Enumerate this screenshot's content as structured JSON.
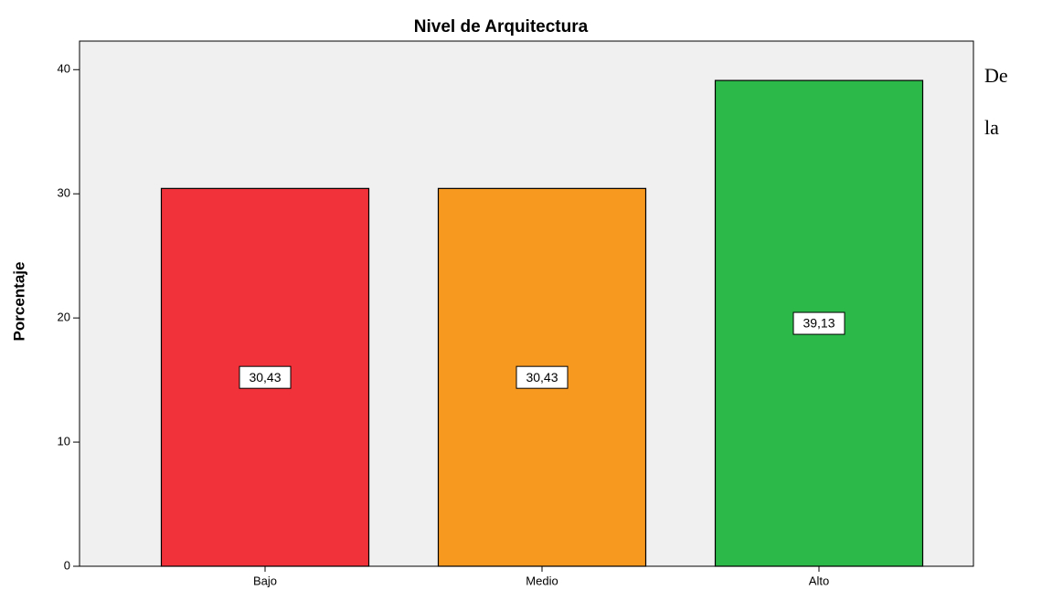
{
  "chart_data": {
    "type": "bar",
    "title": "Nivel de Arquitectura",
    "y_label": "Porcentaje",
    "categories": [
      "Bajo",
      "Medio",
      "Alto"
    ],
    "values": [
      30.43,
      30.43,
      39.13
    ],
    "value_labels": [
      "30,43",
      "30,43",
      "39,13"
    ],
    "colors": [
      "#f2323a",
      "#f7981f",
      "#2db84a"
    ],
    "ylim": [
      0,
      42.3
    ],
    "yticks": [
      0,
      10,
      20,
      30,
      40
    ],
    "grid": false
  },
  "side_text": [
    "De",
    "la"
  ]
}
